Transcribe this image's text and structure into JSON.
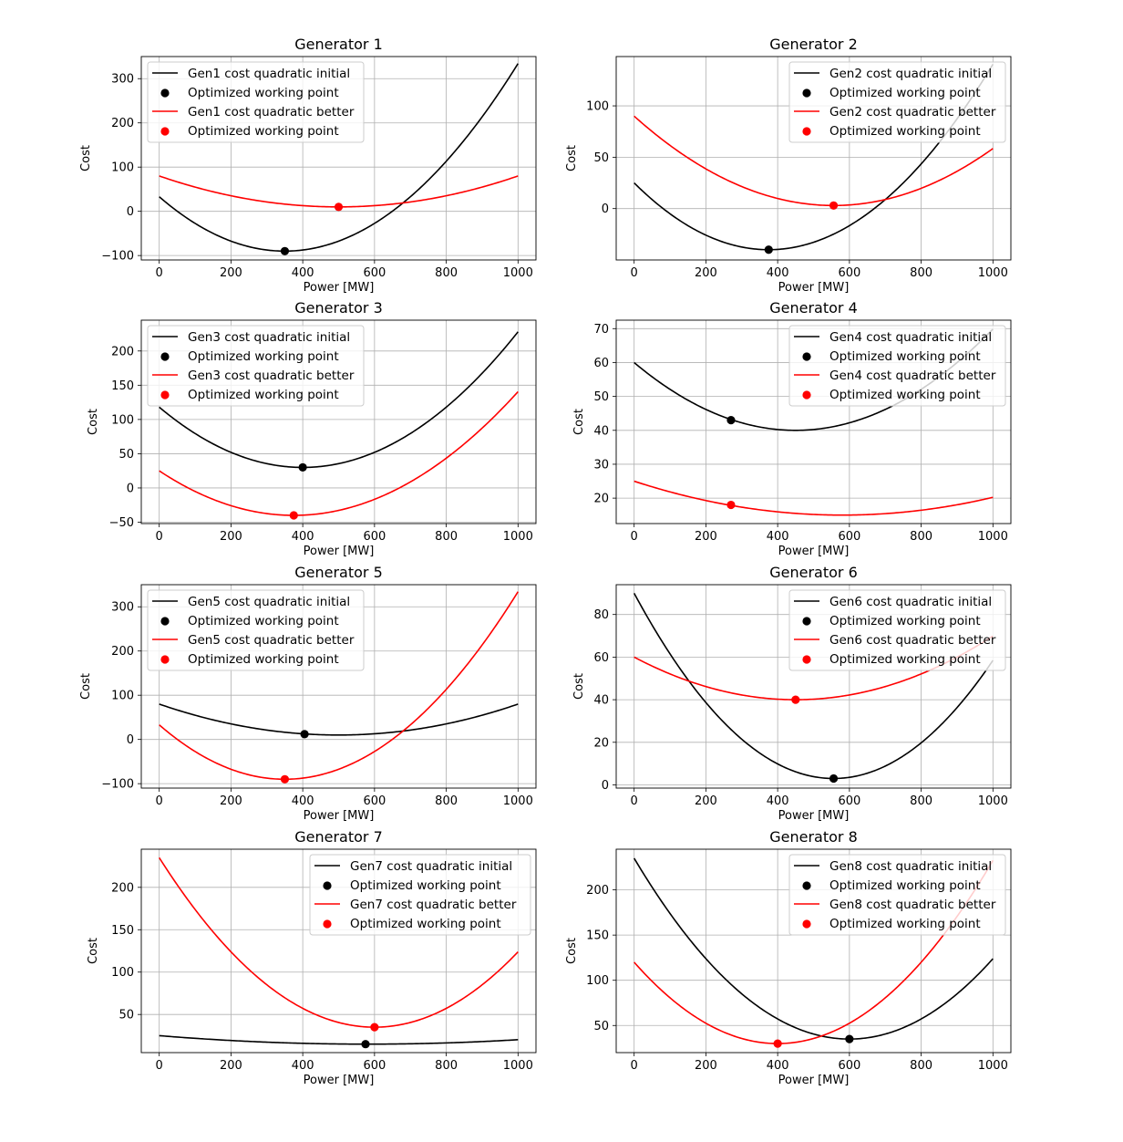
{
  "chart_data": [
    {
      "type": "line",
      "title": "Generator 1",
      "xlabel": "Power [MW]",
      "ylabel": "Cost",
      "xlim": [
        -50,
        1050
      ],
      "ylim": [
        -110,
        350
      ],
      "xticks": [
        0,
        200,
        400,
        600,
        800,
        1000
      ],
      "yticks": [
        -100,
        0,
        100,
        200,
        300
      ],
      "grid": true,
      "legend_loc": "upper left",
      "series": [
        {
          "name": "Gen1 cost quadratic initial",
          "color": "#000000",
          "kind": "quadratic",
          "vertex_x": 350,
          "vertex_y": -90,
          "x": [
            0,
            1000
          ],
          "y": [
            33,
            333
          ]
        },
        {
          "name": "Optimized working point",
          "color": "#000000",
          "kind": "point",
          "x": 350,
          "y": -90
        },
        {
          "name": "Gen1 cost quadratic better",
          "color": "#ff0000",
          "kind": "quadratic",
          "vertex_x": 500,
          "vertex_y": 10,
          "x": [
            0,
            1000
          ],
          "y": [
            80,
            80
          ]
        },
        {
          "name": "Optimized working point",
          "color": "#ff0000",
          "kind": "point",
          "x": 500,
          "y": 10
        }
      ]
    },
    {
      "type": "line",
      "title": "Generator 2",
      "xlabel": "Power [MW]",
      "ylabel": "Cost",
      "xlim": [
        -50,
        1050
      ],
      "ylim": [
        -50,
        148
      ],
      "xticks": [
        0,
        200,
        400,
        600,
        800,
        1000
      ],
      "yticks": [
        0,
        50,
        100
      ],
      "grid": true,
      "legend_loc": "upper right",
      "series": [
        {
          "name": "Gen2 cost quadratic initial",
          "color": "#000000",
          "kind": "quadratic",
          "vertex_x": 375,
          "vertex_y": -40,
          "x": [
            0,
            1000
          ],
          "y": [
            25,
            140
          ]
        },
        {
          "name": "Optimized working point",
          "color": "#000000",
          "kind": "point",
          "x": 375,
          "y": -40
        },
        {
          "name": "Gen2 cost quadratic better",
          "color": "#ff0000",
          "kind": "quadratic",
          "vertex_x": 556,
          "vertex_y": 3,
          "x": [
            0,
            1000
          ],
          "y": [
            90,
            59
          ]
        },
        {
          "name": "Optimized working point",
          "color": "#ff0000",
          "kind": "point",
          "x": 556,
          "y": 3
        }
      ]
    },
    {
      "type": "line",
      "title": "Generator 3",
      "xlabel": "Power [MW]",
      "ylabel": "Cost",
      "xlim": [
        -50,
        1050
      ],
      "ylim": [
        -52,
        245
      ],
      "xticks": [
        0,
        200,
        400,
        600,
        800,
        1000
      ],
      "yticks": [
        -50,
        0,
        50,
        100,
        150,
        200
      ],
      "grid": true,
      "legend_loc": "upper left",
      "series": [
        {
          "name": "Gen3 cost quadratic initial",
          "color": "#000000",
          "kind": "quadratic",
          "vertex_x": 400,
          "vertex_y": 30,
          "x": [
            0,
            1000
          ],
          "y": [
            118,
            235
          ]
        },
        {
          "name": "Optimized working point",
          "color": "#000000",
          "kind": "point",
          "x": 400,
          "y": 30
        },
        {
          "name": "Gen3 cost quadratic better",
          "color": "#ff0000",
          "kind": "quadratic",
          "vertex_x": 375,
          "vertex_y": -40,
          "x": [
            0,
            1000
          ],
          "y": [
            25,
            140
          ]
        },
        {
          "name": "Optimized working point",
          "color": "#ff0000",
          "kind": "point",
          "x": 375,
          "y": -40
        }
      ]
    },
    {
      "type": "line",
      "title": "Generator 4",
      "xlabel": "Power [MW]",
      "ylabel": "Cost",
      "xlim": [
        -50,
        1050
      ],
      "ylim": [
        12.5,
        72.5
      ],
      "xticks": [
        0,
        200,
        400,
        600,
        800,
        1000
      ],
      "yticks": [
        20,
        30,
        40,
        50,
        60,
        70
      ],
      "grid": true,
      "legend_loc": "upper right",
      "series": [
        {
          "name": "Gen4 cost quadratic initial",
          "color": "#000000",
          "kind": "quadratic",
          "vertex_x": 450,
          "vertex_y": 40,
          "x": [
            0,
            1000
          ],
          "y": [
            60,
            70
          ]
        },
        {
          "name": "Optimized working point",
          "color": "#000000",
          "kind": "point",
          "x": 270,
          "y": 43
        },
        {
          "name": "Gen4 cost quadratic better",
          "color": "#ff0000",
          "kind": "quadratic",
          "vertex_x": 580,
          "vertex_y": 15,
          "x": [
            0,
            1000
          ],
          "y": [
            25,
            20.5
          ]
        },
        {
          "name": "Optimized working point",
          "color": "#ff0000",
          "kind": "point",
          "x": 270,
          "y": 18
        }
      ]
    },
    {
      "type": "line",
      "title": "Generator 5",
      "xlabel": "Power [MW]",
      "ylabel": "Cost",
      "xlim": [
        -50,
        1050
      ],
      "ylim": [
        -110,
        350
      ],
      "xticks": [
        0,
        200,
        400,
        600,
        800,
        1000
      ],
      "yticks": [
        -100,
        0,
        100,
        200,
        300
      ],
      "grid": true,
      "legend_loc": "upper left",
      "series": [
        {
          "name": "Gen5 cost quadratic initial",
          "color": "#000000",
          "kind": "quadratic",
          "vertex_x": 500,
          "vertex_y": 10,
          "x": [
            0,
            1000
          ],
          "y": [
            80,
            80
          ]
        },
        {
          "name": "Optimized working point",
          "color": "#000000",
          "kind": "point",
          "x": 405,
          "y": 12
        },
        {
          "name": "Gen5 cost quadratic better",
          "color": "#ff0000",
          "kind": "quadratic",
          "vertex_x": 350,
          "vertex_y": -90,
          "x": [
            0,
            1000
          ],
          "y": [
            33,
            333
          ]
        },
        {
          "name": "Optimized working point",
          "color": "#ff0000",
          "kind": "point",
          "x": 350,
          "y": -90
        }
      ]
    },
    {
      "type": "line",
      "title": "Generator 6",
      "xlabel": "Power [MW]",
      "ylabel": "Cost",
      "xlim": [
        -50,
        1050
      ],
      "ylim": [
        -1.5,
        94
      ],
      "xticks": [
        0,
        200,
        400,
        600,
        800,
        1000
      ],
      "yticks": [
        0,
        20,
        40,
        60,
        80
      ],
      "grid": true,
      "legend_loc": "upper right",
      "series": [
        {
          "name": "Gen6 cost quadratic initial",
          "color": "#000000",
          "kind": "quadratic",
          "vertex_x": 556,
          "vertex_y": 3,
          "x": [
            0,
            1000
          ],
          "y": [
            90,
            59
          ]
        },
        {
          "name": "Optimized working point",
          "color": "#000000",
          "kind": "point",
          "x": 556,
          "y": 3
        },
        {
          "name": "Gen6 cost quadratic better",
          "color": "#ff0000",
          "kind": "quadratic",
          "vertex_x": 450,
          "vertex_y": 40,
          "x": [
            0,
            1000
          ],
          "y": [
            60,
            70
          ]
        },
        {
          "name": "Optimized working point",
          "color": "#ff0000",
          "kind": "point",
          "x": 450,
          "y": 40
        }
      ]
    },
    {
      "type": "line",
      "title": "Generator 7",
      "xlabel": "Power [MW]",
      "ylabel": "Cost",
      "xlim": [
        -50,
        1050
      ],
      "ylim": [
        5,
        245
      ],
      "xticks": [
        0,
        200,
        400,
        600,
        800,
        1000
      ],
      "yticks": [
        50,
        100,
        150,
        200
      ],
      "grid": true,
      "legend_loc": "upper right",
      "series": [
        {
          "name": "Gen7 cost quadratic initial",
          "color": "#000000",
          "kind": "quadratic",
          "vertex_x": 580,
          "vertex_y": 15,
          "x": [
            0,
            1000
          ],
          "y": [
            25,
            20.5
          ]
        },
        {
          "name": "Optimized working point",
          "color": "#000000",
          "kind": "point",
          "x": 575,
          "y": 15
        },
        {
          "name": "Gen7 cost quadratic better",
          "color": "#ff0000",
          "kind": "quadratic",
          "vertex_x": 600,
          "vertex_y": 35,
          "x": [
            0,
            1000
          ],
          "y": [
            235,
            124
          ]
        },
        {
          "name": "Optimized working point",
          "color": "#ff0000",
          "kind": "point",
          "x": 600,
          "y": 35
        }
      ]
    },
    {
      "type": "line",
      "title": "Generator 8",
      "xlabel": "Power [MW]",
      "ylabel": "Cost",
      "xlim": [
        -50,
        1050
      ],
      "ylim": [
        20,
        245
      ],
      "xticks": [
        0,
        200,
        400,
        600,
        800,
        1000
      ],
      "yticks": [
        50,
        100,
        150,
        200
      ],
      "grid": true,
      "legend_loc": "upper right",
      "series": [
        {
          "name": "Gen8 cost quadratic initial",
          "color": "#000000",
          "kind": "quadratic",
          "vertex_x": 600,
          "vertex_y": 35,
          "x": [
            0,
            1000
          ],
          "y": [
            235,
            124
          ]
        },
        {
          "name": "Optimized working point",
          "color": "#000000",
          "kind": "point",
          "x": 600,
          "y": 35
        },
        {
          "name": "Gen8 cost quadratic better",
          "color": "#ff0000",
          "kind": "quadratic",
          "vertex_x": 400,
          "vertex_y": 30,
          "x": [
            0,
            1000
          ],
          "y": [
            120,
            233
          ]
        },
        {
          "name": "Optimized working point",
          "color": "#ff0000",
          "kind": "point",
          "x": 400,
          "y": 30
        }
      ]
    }
  ]
}
